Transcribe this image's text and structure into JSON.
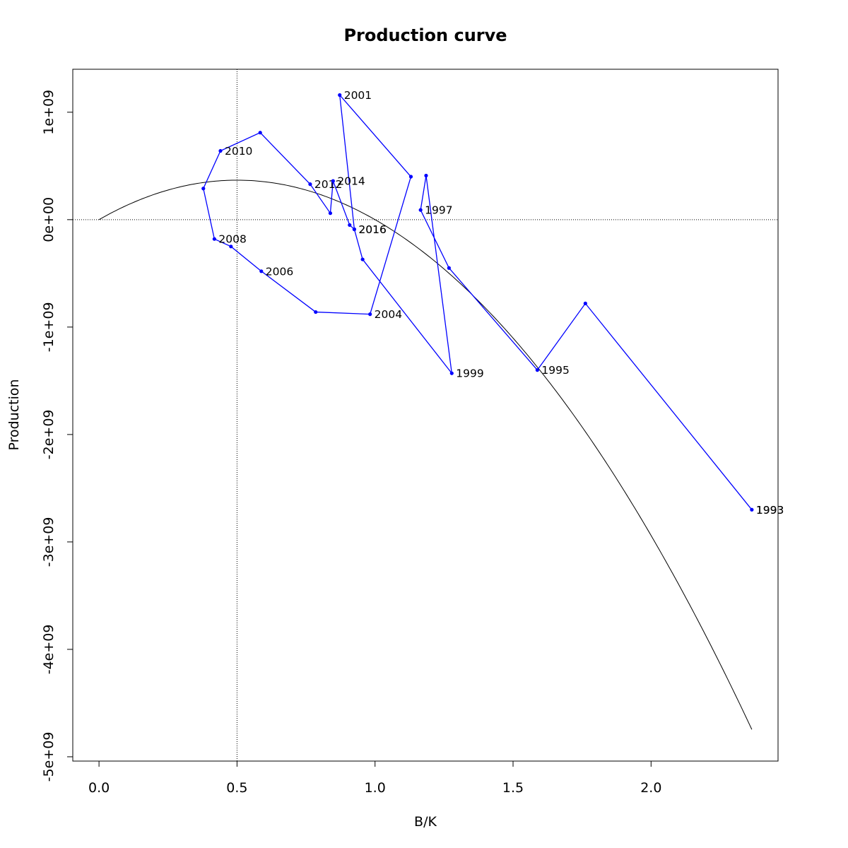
{
  "chart_data": {
    "type": "line",
    "title": "Production curve",
    "xlabel": "B/K",
    "ylabel": "Production",
    "xlim": [
      -0.095,
      2.46
    ],
    "ylim": [
      -5040000000.0,
      1400000000.0
    ],
    "x_ticks": [
      0.0,
      0.5,
      1.0,
      1.5,
      2.0
    ],
    "x_tick_labels": [
      "0.0",
      "0.5",
      "1.0",
      "1.5",
      "2.0"
    ],
    "y_ticks": [
      1000000000.0,
      0,
      -1000000000.0,
      -2000000000.0,
      -3000000000.0,
      -4000000000.0,
      -5000000000.0
    ],
    "y_tick_labels": [
      "1e+09",
      "0e+00",
      "-1e+09",
      "-2e+09",
      "-3e+09",
      "-4e+09",
      "-5e+09"
    ],
    "reference_lines": {
      "vertical_x": 0.5,
      "horizontal_y": 0
    },
    "curve": {
      "form": "quadratic",
      "r": 1470000000.0,
      "x_max": 2.365,
      "color": "#000000"
    },
    "series": [
      {
        "color": "#0000ff",
        "points": [
          {
            "x": 2.365,
            "y": -2700000000.0,
            "label": "1993"
          },
          {
            "x": 1.762,
            "y": -780000000.0,
            "label": ""
          },
          {
            "x": 1.588,
            "y": -1400000000.0,
            "label": "1995"
          },
          {
            "x": 1.268,
            "y": -450000000.0,
            "label": ""
          },
          {
            "x": 1.165,
            "y": 90000000.0,
            "label": "1997"
          },
          {
            "x": 1.185,
            "y": 410000000.0,
            "label": ""
          },
          {
            "x": 1.278,
            "y": -1430000000.0,
            "label": "1999"
          },
          {
            "x": 0.955,
            "y": -370000000.0,
            "label": ""
          },
          {
            "x": 0.925,
            "y": -90000000.0,
            "label": "2016"
          },
          {
            "x": 0.872,
            "y": 1160000000.0,
            "label": "2001"
          },
          {
            "x": 1.13,
            "y": 400000000.0,
            "label": ""
          },
          {
            "x": 0.982,
            "y": -880000000.0,
            "label": "2004"
          },
          {
            "x": 0.785,
            "y": -860000000.0,
            "label": ""
          },
          {
            "x": 0.588,
            "y": -480000000.0,
            "label": "2006"
          },
          {
            "x": 0.478,
            "y": -250000000.0,
            "label": ""
          },
          {
            "x": 0.418,
            "y": -180000000.0,
            "label": "2008"
          },
          {
            "x": 0.378,
            "y": 290000000.0,
            "label": ""
          },
          {
            "x": 0.44,
            "y": 640000000.0,
            "label": "2010"
          },
          {
            "x": 0.584,
            "y": 810000000.0,
            "label": ""
          },
          {
            "x": 0.765,
            "y": 330000000.0,
            "label": "2012"
          },
          {
            "x": 0.838,
            "y": 60000000.0,
            "label": ""
          },
          {
            "x": 0.848,
            "y": 360000000.0,
            "label": "2014"
          },
          {
            "x": 0.908,
            "y": -50000000.0,
            "label": ""
          },
          {
            "x": 0.925,
            "y": -90000000.0,
            "label": "2016"
          }
        ]
      }
    ],
    "extra_labels": [
      {
        "x": 2.365,
        "y": -2700000000.0,
        "label": "1993"
      }
    ]
  }
}
